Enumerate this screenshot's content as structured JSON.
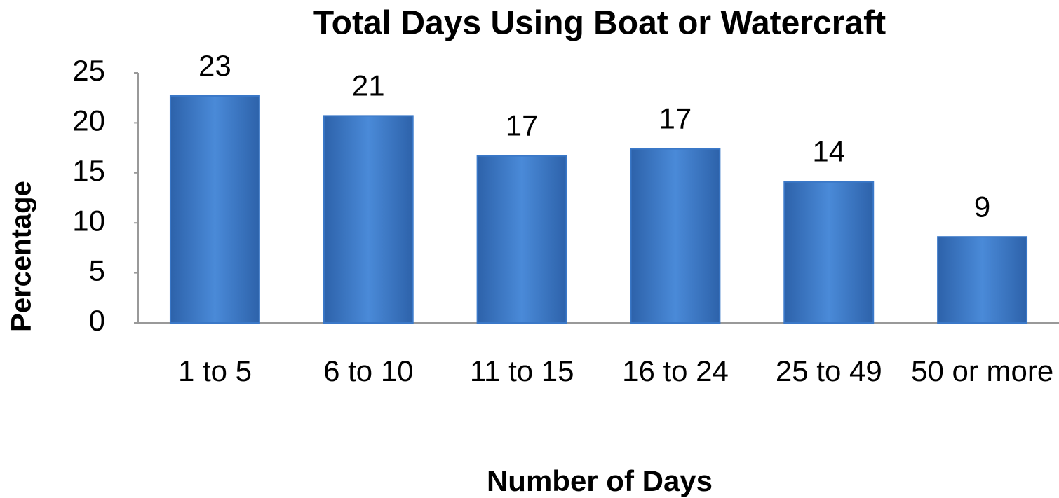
{
  "chart_data": {
    "type": "bar",
    "title": "Total Days Using Boat or Watercraft",
    "x_label": "Number of Days",
    "y_label": "Percentage",
    "categories": [
      "1 to 5",
      "6 to 10",
      "11 to 15",
      "16 to 24",
      "25 to 49",
      "50 or more"
    ],
    "values": [
      22.7,
      20.7,
      16.7,
      17.4,
      14.1,
      8.6
    ],
    "value_labels": [
      "23",
      "21",
      "17",
      "17",
      "14",
      "9"
    ],
    "color": "#3a78c8",
    "ylim": [
      0,
      25
    ],
    "yticks": [
      0,
      5,
      10,
      15,
      20,
      25
    ],
    "grid": false
  }
}
